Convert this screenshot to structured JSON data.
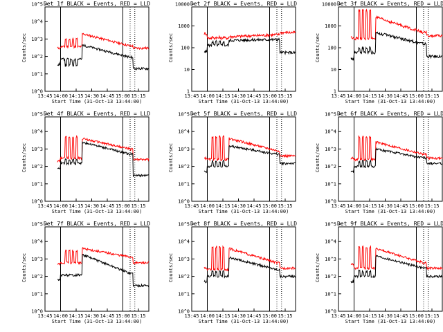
{
  "chart_data": {
    "type": "line",
    "grid": false,
    "x_tick_labels": [
      "13:45",
      "14:00",
      "14:15",
      "14:30",
      "14:45",
      "15:00",
      "15:15"
    ],
    "xlabel": "Start Time (31-Oct-13 13:44:00)",
    "ylabel": "Counts/sec",
    "series_colors": {
      "Events": "#000000",
      "LLD": "#ff0000"
    },
    "panels": [
      {
        "title": "Det 1f BLACK = Events, RED = LLD",
        "ylim_exp": [
          0,
          5
        ],
        "y_tick_labels": [
          "10^0",
          "10^1",
          "10^2",
          "10^3",
          "10^4",
          "10^5"
        ],
        "events": {
          "base": 70,
          "spikes": 30,
          "flare_peak": 450,
          "decay_end": 90,
          "tail": 20
        },
        "lld": {
          "pre": 300,
          "base": 360,
          "spikes": 1000,
          "flare_peak": 2000,
          "decay_end": 400,
          "tail": 300
        }
      },
      {
        "title": "Det 2f BLACK = Events, RED = LLD",
        "ylim_exp": [
          0,
          4
        ],
        "y_tick_labels": [
          "1",
          "10",
          "100",
          "1000",
          "10000"
        ],
        "events": {
          "base": 130,
          "spikes": 190,
          "flare_peak": 220,
          "decay_end": 240,
          "tail": 60
        },
        "lld": {
          "pre": 450,
          "base": 280,
          "spikes": 300,
          "flare_peak": 320,
          "decay_end": 400,
          "tail": 500
        }
      },
      {
        "title": "Det 3f BLACK = Events, RED = LLD",
        "ylim_exp": [
          0,
          4
        ],
        "y_tick_labels": [
          "1",
          "10",
          "100",
          "1000",
          "10000"
        ],
        "events": {
          "base": 60,
          "spikes": 100,
          "flare_peak": 500,
          "decay_end": 150,
          "tail": 40
        },
        "lld": {
          "pre": 300,
          "base": 270,
          "spikes": 5000,
          "flare_peak": 2500,
          "decay_end": 500,
          "tail": 350
        }
      },
      {
        "title": "Det 4f BLACK = Events, RED = LLD",
        "ylim_exp": [
          0,
          5
        ],
        "y_tick_labels": [
          "10^0",
          "10^1",
          "10^2",
          "10^3",
          "10^4",
          "10^5"
        ],
        "events": {
          "base": 150,
          "spikes": 250,
          "flare_peak": 2500,
          "decay_end": 500,
          "tail": 30
        },
        "lld": {
          "pre": 200,
          "base": 300,
          "spikes": 5000,
          "flare_peak": 4000,
          "decay_end": 1000,
          "tail": 250
        }
      },
      {
        "title": "Det 5f BLACK = Events, RED = LLD",
        "ylim_exp": [
          0,
          5
        ],
        "y_tick_labels": [
          "10^0",
          "10^1",
          "10^2",
          "10^3",
          "10^4",
          "10^5"
        ],
        "events": {
          "base": 100,
          "spikes": 200,
          "flare_peak": 1500,
          "decay_end": 500,
          "tail": 150
        },
        "lld": {
          "pre": 300,
          "base": 250,
          "spikes": 5000,
          "flare_peak": 4000,
          "decay_end": 800,
          "tail": 400
        }
      },
      {
        "title": "Det 6f BLACK = Events, RED = LLD",
        "ylim_exp": [
          0,
          5
        ],
        "y_tick_labels": [
          "10^0",
          "10^1",
          "10^2",
          "10^3",
          "10^4",
          "10^5"
        ],
        "events": {
          "base": 100,
          "spikes": 200,
          "flare_peak": 1000,
          "decay_end": 300,
          "tail": 150
        },
        "lld": {
          "pre": 300,
          "base": 250,
          "spikes": 5000,
          "flare_peak": 2500,
          "decay_end": 500,
          "tail": 300
        }
      },
      {
        "title": "Det 7f BLACK = Events, RED = LLD",
        "ylim_exp": [
          0,
          5
        ],
        "y_tick_labels": [
          "10^0",
          "10^1",
          "10^2",
          "10^3",
          "10^4",
          "10^5"
        ],
        "events": {
          "base": 120,
          "spikes": 120,
          "flare_peak": 1800,
          "decay_end": 150,
          "tail": 30
        },
        "lld": {
          "pre": 500,
          "base": 600,
          "spikes": 3000,
          "flare_peak": 4000,
          "decay_end": 1300,
          "tail": 600
        }
      },
      {
        "title": "Det 8f BLACK = Events, RED = LLD",
        "ylim_exp": [
          0,
          5
        ],
        "y_tick_labels": [
          "10^0",
          "10^1",
          "10^2",
          "10^3",
          "10^4",
          "10^5"
        ],
        "events": {
          "base": 100,
          "spikes": 200,
          "flare_peak": 1200,
          "decay_end": 250,
          "tail": 100
        },
        "lld": {
          "pre": 300,
          "base": 250,
          "spikes": 5000,
          "flare_peak": 4000,
          "decay_end": 600,
          "tail": 300
        }
      },
      {
        "title": "Det 9f BLACK = Events, RED = LLD",
        "ylim_exp": [
          0,
          5
        ],
        "y_tick_labels": [
          "10^0",
          "10^1",
          "10^2",
          "10^3",
          "10^4",
          "10^5"
        ],
        "events": {
          "base": 100,
          "spikes": 200,
          "flare_peak": 1500,
          "decay_end": 300,
          "tail": 100
        },
        "lld": {
          "pre": 500,
          "base": 300,
          "spikes": 5000,
          "flare_peak": 4000,
          "decay_end": 600,
          "tail": 300
        }
      }
    ]
  }
}
